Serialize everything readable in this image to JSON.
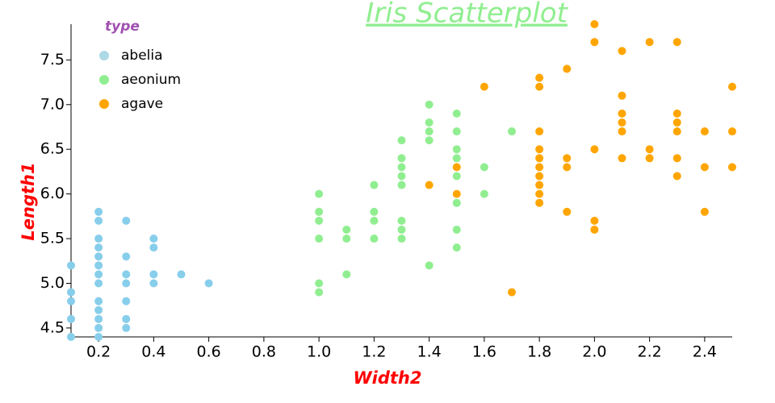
{
  "chart_data": {
    "type": "scatter",
    "title": "Iris Scatterplot",
    "x_label": "Width2",
    "y_label": "Length1",
    "legend_title": "type",
    "legend": "top-left",
    "xlim": [
      0.1,
      2.5
    ],
    "ylim": [
      4.4,
      7.9
    ],
    "xticks": [
      0.2,
      0.4,
      0.6,
      0.8,
      {
        "value": 1.0,
        "label": "1.0"
      },
      1.2,
      1.4,
      1.6,
      1.8,
      {
        "value": 2.0,
        "label": "2.0"
      },
      2.2,
      2.4
    ],
    "yticks": [
      4.5,
      {
        "value": 5.0,
        "label": "5.0"
      },
      5.5,
      {
        "value": 6.0,
        "label": "6.0"
      },
      6.5,
      {
        "value": 7.0,
        "label": "7.0"
      },
      7.5
    ],
    "series": [
      {
        "name": "abelia",
        "color": "#87ceeb",
        "legend_color": "#add8e6",
        "x": [
          0.1,
          0.1,
          0.1,
          0.1,
          0.1,
          0.2,
          0.2,
          0.2,
          0.2,
          0.2,
          0.2,
          0.2,
          0.2,
          0.2,
          0.2,
          0.2,
          0.2,
          0.2,
          0.3,
          0.3,
          0.3,
          0.3,
          0.3,
          0.3,
          0.3,
          0.4,
          0.4,
          0.4,
          0.4,
          0.5,
          0.6
        ],
        "values": [
          5.2,
          4.9,
          4.8,
          4.6,
          4.4,
          5.8,
          5.7,
          5.5,
          5.4,
          5.3,
          5.2,
          5.1,
          5.0,
          4.8,
          4.7,
          4.6,
          4.5,
          4.4,
          5.7,
          5.3,
          5.1,
          5.0,
          4.8,
          4.6,
          4.5,
          5.5,
          5.4,
          5.1,
          5.0,
          5.1,
          5.0
        ]
      },
      {
        "name": "aeonium",
        "color": "#90ee90",
        "legend_color": "#90ee90",
        "x": [
          1.0,
          1.0,
          1.0,
          1.0,
          1.0,
          1.0,
          1.1,
          1.1,
          1.1,
          1.2,
          1.2,
          1.2,
          1.2,
          1.3,
          1.3,
          1.3,
          1.3,
          1.3,
          1.3,
          1.3,
          1.3,
          1.4,
          1.4,
          1.4,
          1.4,
          1.4,
          1.5,
          1.5,
          1.5,
          1.5,
          1.5,
          1.5,
          1.5,
          1.5,
          1.6,
          1.6,
          1.7
        ],
        "values": [
          6.0,
          5.8,
          5.7,
          5.5,
          5.0,
          4.9,
          5.6,
          5.5,
          5.1,
          6.1,
          5.8,
          5.7,
          5.5,
          6.6,
          6.4,
          6.3,
          6.2,
          6.1,
          5.7,
          5.6,
          5.5,
          7.0,
          6.8,
          6.7,
          6.6,
          5.2,
          6.9,
          6.7,
          6.5,
          6.4,
          6.2,
          5.9,
          5.6,
          5.4,
          6.3,
          6.0,
          6.7
        ]
      },
      {
        "name": "agave",
        "color": "#ffa500",
        "legend_color": "#ffa500",
        "x": [
          1.4,
          1.5,
          1.5,
          1.6,
          1.7,
          1.8,
          1.8,
          1.8,
          1.8,
          1.8,
          1.8,
          1.8,
          1.8,
          1.8,
          1.8,
          1.9,
          1.9,
          1.9,
          1.9,
          2.0,
          2.0,
          2.0,
          2.0,
          2.0,
          2.1,
          2.1,
          2.1,
          2.1,
          2.1,
          2.1,
          2.2,
          2.2,
          2.2,
          2.3,
          2.3,
          2.3,
          2.3,
          2.3,
          2.3,
          2.4,
          2.4,
          2.4,
          2.5,
          2.5,
          2.5
        ],
        "values": [
          6.1,
          6.3,
          6.0,
          7.2,
          4.9,
          7.3,
          7.2,
          6.7,
          6.5,
          6.4,
          6.3,
          6.2,
          6.1,
          6.0,
          5.9,
          7.4,
          6.4,
          6.3,
          5.8,
          7.9,
          7.7,
          6.5,
          5.7,
          5.6,
          7.6,
          7.1,
          6.9,
          6.8,
          6.7,
          6.4,
          7.7,
          6.5,
          6.4,
          7.7,
          6.9,
          6.8,
          6.7,
          6.4,
          6.2,
          6.7,
          6.3,
          5.8,
          7.2,
          6.7,
          6.3
        ]
      }
    ]
  }
}
